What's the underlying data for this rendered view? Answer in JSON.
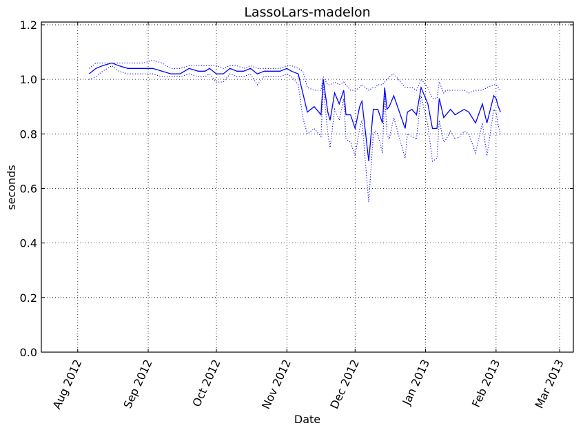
{
  "chart_data": {
    "type": "line",
    "title": "LassoLars-madelon",
    "xlabel": "Date",
    "ylabel": "seconds",
    "xlim": [
      "2012-07-16",
      "2013-03-07"
    ],
    "ylim": [
      0,
      1.21
    ],
    "grid": true,
    "x_ticks": [
      {
        "date": "2012-08-01",
        "label": "Aug 2012"
      },
      {
        "date": "2012-09-01",
        "label": "Sep 2012"
      },
      {
        "date": "2012-10-01",
        "label": "Oct 2012"
      },
      {
        "date": "2012-11-01",
        "label": "Nov 2012"
      },
      {
        "date": "2012-12-01",
        "label": "Dec 2012"
      },
      {
        "date": "2013-01-01",
        "label": "Jan 2013"
      },
      {
        "date": "2013-02-01",
        "label": "Feb 2013"
      },
      {
        "date": "2013-03-01",
        "label": "Mar 2013"
      }
    ],
    "y_ticks": [
      {
        "value": 0.0,
        "label": "0.0"
      },
      {
        "value": 0.2,
        "label": "0.2"
      },
      {
        "value": 0.4,
        "label": "0.4"
      },
      {
        "value": 0.6,
        "label": "0.6"
      },
      {
        "value": 0.8,
        "label": "0.8"
      },
      {
        "value": 1.0,
        "label": "1.0"
      },
      {
        "value": 1.2,
        "label": "1.2"
      }
    ],
    "color": "#0000ff",
    "x": [
      "2012-08-06",
      "2012-08-09",
      "2012-08-12",
      "2012-08-16",
      "2012-08-19",
      "2012-08-23",
      "2012-08-26",
      "2012-08-30",
      "2012-09-03",
      "2012-09-07",
      "2012-09-11",
      "2012-09-15",
      "2012-09-19",
      "2012-09-23",
      "2012-09-26",
      "2012-09-28",
      "2012-10-01",
      "2012-10-04",
      "2012-10-07",
      "2012-10-10",
      "2012-10-13",
      "2012-10-16",
      "2012-10-19",
      "2012-10-22",
      "2012-10-25",
      "2012-10-29",
      "2012-11-01",
      "2012-11-03",
      "2012-11-06",
      "2012-11-08",
      "2012-11-10",
      "2012-11-13",
      "2012-11-16",
      "2012-11-17",
      "2012-11-19",
      "2012-11-20",
      "2012-11-22",
      "2012-11-24",
      "2012-11-26",
      "2012-11-27",
      "2012-11-29",
      "2012-12-01",
      "2012-12-03",
      "2012-12-04",
      "2012-12-07",
      "2012-12-09",
      "2012-12-10",
      "2012-12-11",
      "2012-12-13",
      "2012-12-14",
      "2012-12-15",
      "2012-12-16",
      "2012-12-18",
      "2012-12-23",
      "2012-12-24",
      "2012-12-26",
      "2012-12-28",
      "2012-12-30",
      "2013-01-02",
      "2013-01-04",
      "2013-01-06",
      "2013-01-07",
      "2013-01-09",
      "2013-01-10",
      "2013-01-12",
      "2013-01-14",
      "2013-01-16",
      "2013-01-18",
      "2013-01-20",
      "2013-01-23",
      "2013-01-26",
      "2013-01-28",
      "2013-01-31",
      "2013-02-01",
      "2013-02-02",
      "2013-02-03"
    ],
    "series": [
      {
        "style": "solid",
        "values": [
          1.02,
          1.04,
          1.05,
          1.06,
          1.05,
          1.04,
          1.04,
          1.04,
          1.04,
          1.03,
          1.02,
          1.02,
          1.04,
          1.03,
          1.03,
          1.04,
          1.02,
          1.02,
          1.04,
          1.03,
          1.03,
          1.04,
          1.02,
          1.03,
          1.03,
          1.03,
          1.04,
          1.03,
          1.02,
          0.95,
          0.88,
          0.9,
          0.87,
          1.0,
          0.88,
          0.85,
          0.95,
          0.91,
          0.96,
          0.87,
          0.87,
          0.82,
          0.9,
          0.92,
          0.7,
          0.89,
          0.89,
          0.89,
          0.84,
          0.97,
          0.89,
          0.9,
          0.94,
          0.82,
          0.88,
          0.89,
          0.87,
          0.97,
          0.91,
          0.82,
          0.82,
          0.93,
          0.86,
          0.87,
          0.89,
          0.87,
          0.88,
          0.89,
          0.88,
          0.84,
          0.91,
          0.84,
          0.94,
          0.93,
          0.9,
          0.88
        ]
      },
      {
        "style": "dotted",
        "values": [
          1.04,
          1.06,
          1.06,
          1.06,
          1.06,
          1.06,
          1.06,
          1.06,
          1.07,
          1.06,
          1.04,
          1.04,
          1.05,
          1.05,
          1.05,
          1.05,
          1.05,
          1.04,
          1.05,
          1.05,
          1.04,
          1.05,
          1.04,
          1.04,
          1.04,
          1.04,
          1.05,
          1.05,
          1.04,
          1.03,
          0.97,
          0.96,
          0.96,
          1.01,
          0.98,
          0.98,
          0.99,
          0.98,
          0.99,
          0.98,
          0.96,
          0.96,
          0.97,
          0.98,
          0.96,
          0.97,
          0.97,
          0.98,
          0.98,
          0.99,
          1.0,
          1.01,
          1.02,
          0.97,
          0.97,
          0.97,
          0.96,
          1.0,
          0.97,
          0.93,
          0.93,
          0.99,
          0.95,
          0.96,
          0.96,
          0.96,
          0.96,
          0.96,
          0.95,
          0.96,
          0.96,
          0.97,
          0.98,
          0.98,
          0.97,
          0.96
        ]
      },
      {
        "style": "dotted",
        "values": [
          1.0,
          1.01,
          1.03,
          1.05,
          1.03,
          1.02,
          1.02,
          1.02,
          1.02,
          1.01,
          1.01,
          1.01,
          1.02,
          1.01,
          1.01,
          1.02,
          0.99,
          0.99,
          1.02,
          1.01,
          1.01,
          1.02,
          0.98,
          1.01,
          1.01,
          1.01,
          1.02,
          1.01,
          0.98,
          0.86,
          0.8,
          0.82,
          0.79,
          0.98,
          0.8,
          0.75,
          0.89,
          0.85,
          0.93,
          0.78,
          0.77,
          0.72,
          0.82,
          0.85,
          0.55,
          0.8,
          0.81,
          0.8,
          0.73,
          0.95,
          0.8,
          0.78,
          0.86,
          0.71,
          0.8,
          0.79,
          0.78,
          0.94,
          0.83,
          0.7,
          0.71,
          0.85,
          0.77,
          0.78,
          0.81,
          0.78,
          0.79,
          0.81,
          0.8,
          0.73,
          0.84,
          0.72,
          0.89,
          0.88,
          0.83,
          0.8
        ]
      }
    ]
  }
}
